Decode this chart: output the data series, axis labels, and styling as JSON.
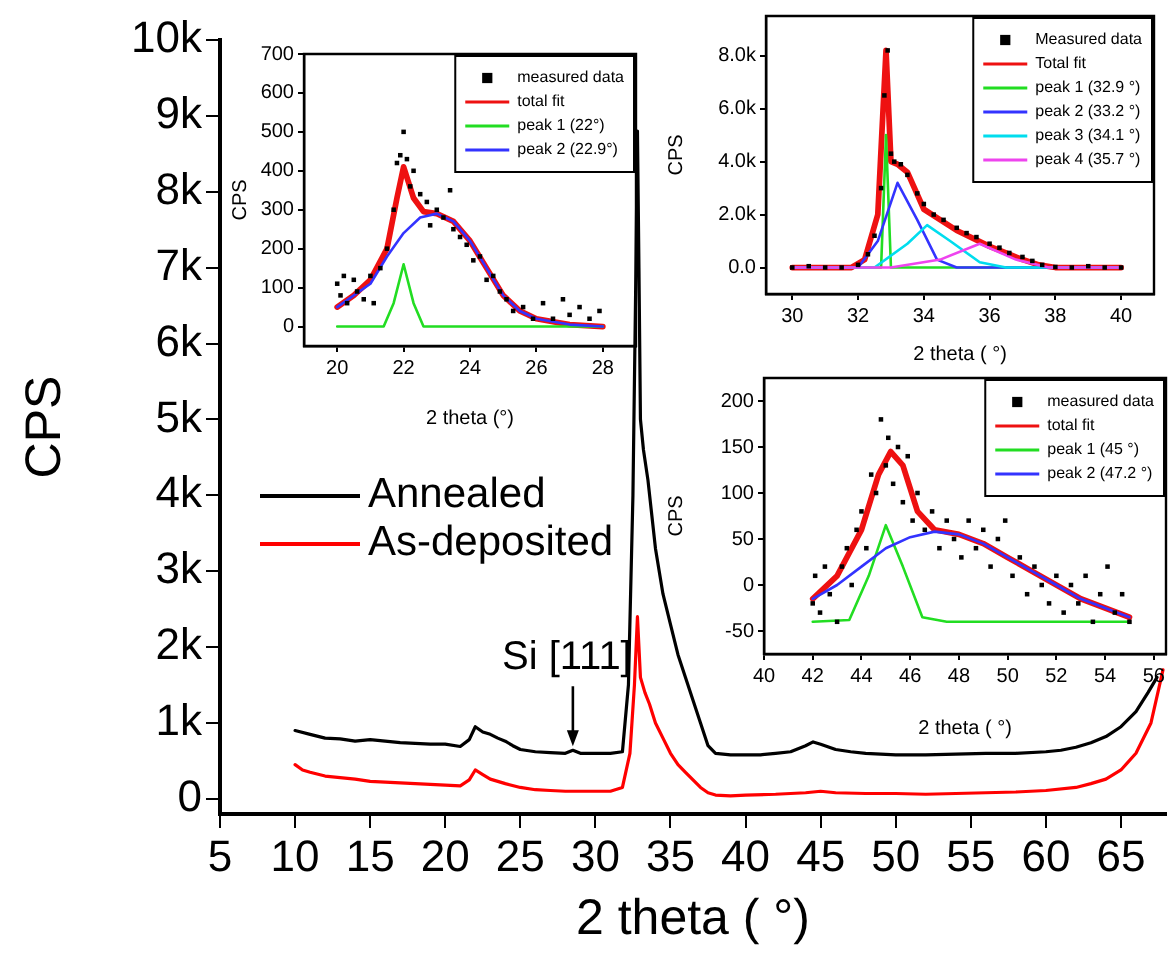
{
  "chart_data": [
    {
      "type": "line",
      "xlabel": "2 theta ( °)",
      "ylabel": "CPS",
      "xlim": [
        5,
        68
      ],
      "xticks": [
        5,
        10,
        15,
        20,
        25,
        30,
        35,
        40,
        45,
        50,
        55,
        60,
        65
      ],
      "ylim": [
        -200,
        10000
      ],
      "yticks": [
        0,
        {
          "value": 1000,
          "label": "1k"
        },
        {
          "value": 2000,
          "label": "2k"
        },
        {
          "value": 3000,
          "label": "3k"
        },
        {
          "value": 4000,
          "label": "4k"
        },
        {
          "value": 5000,
          "label": "5k"
        },
        {
          "value": 6000,
          "label": "6k"
        },
        {
          "value": 7000,
          "label": "7k"
        },
        {
          "value": 8000,
          "label": "8k"
        },
        {
          "value": 9000,
          "label": "9k"
        },
        {
          "value": 10000,
          "label": "10k"
        }
      ],
      "legend": "center left",
      "line_style": "solid",
      "annotations": [
        {
          "text": "Si [111]",
          "x": 28.5,
          "y": 640
        }
      ],
      "series": [
        {
          "name": "Annealed",
          "color": "#000000",
          "x": [
            10,
            11,
            12,
            13,
            14,
            15,
            16,
            17,
            18,
            19,
            20,
            21,
            21.6,
            22,
            22.5,
            23,
            23.5,
            24,
            24.5,
            25,
            26,
            27,
            28,
            28.5,
            29,
            30,
            31,
            31.8,
            32.2,
            32.5,
            32.7,
            32.8,
            32.9,
            33,
            33.2,
            33.5,
            34,
            34.5,
            35,
            35.5,
            36,
            36.5,
            37,
            37.5,
            38,
            39,
            40,
            41,
            42,
            43,
            44,
            44.5,
            45,
            46,
            47,
            48,
            50,
            52,
            54,
            56,
            58,
            60,
            61,
            62,
            63,
            64,
            65,
            66,
            66.8,
            67.4
          ],
          "values": [
            900,
            850,
            800,
            790,
            760,
            780,
            760,
            740,
            730,
            720,
            720,
            690,
            780,
            950,
            880,
            850,
            800,
            760,
            700,
            650,
            620,
            610,
            600,
            640,
            600,
            600,
            600,
            620,
            1500,
            4000,
            7000,
            8800,
            7000,
            5000,
            4600,
            4200,
            3300,
            2700,
            2300,
            1900,
            1600,
            1300,
            1000,
            700,
            600,
            580,
            580,
            580,
            600,
            620,
            700,
            750,
            720,
            650,
            620,
            600,
            580,
            580,
            590,
            600,
            600,
            620,
            640,
            680,
            740,
            820,
            950,
            1150,
            1400,
            1600
          ]
        },
        {
          "name": "As-deposited",
          "color": "#ff0000",
          "x": [
            10,
            10.5,
            11,
            12,
            13,
            14,
            15,
            16,
            17,
            18,
            19,
            20,
            21,
            21.6,
            22,
            22.5,
            23,
            24,
            25,
            26,
            27,
            28,
            29,
            30,
            31,
            31.8,
            32.3,
            32.6,
            32.8,
            33,
            33.3,
            33.6,
            34,
            34.5,
            35,
            35.5,
            36,
            36.5,
            37,
            37.5,
            38,
            39,
            40,
            42,
            44,
            45,
            46,
            48,
            50,
            52,
            54,
            56,
            58,
            60,
            62,
            63,
            64,
            65,
            66,
            67,
            67.8
          ],
          "values": [
            450,
            380,
            350,
            300,
            280,
            260,
            230,
            220,
            210,
            200,
            190,
            180,
            170,
            250,
            380,
            320,
            260,
            200,
            150,
            120,
            110,
            100,
            100,
            100,
            100,
            150,
            600,
            1500,
            2400,
            1600,
            1400,
            1250,
            1000,
            800,
            600,
            450,
            350,
            250,
            150,
            80,
            50,
            40,
            50,
            60,
            80,
            100,
            80,
            70,
            70,
            60,
            70,
            80,
            90,
            110,
            150,
            200,
            260,
            380,
            600,
            1000,
            1700
          ]
        }
      ]
    },
    {
      "type": "line",
      "xlabel": "2 theta (°)",
      "ylabel": "CPS",
      "xlim": [
        19,
        29
      ],
      "xticks": [
        20,
        22,
        24,
        26,
        28
      ],
      "ylim": [
        -50,
        700
      ],
      "yticks": [
        0,
        100,
        200,
        300,
        400,
        500,
        600,
        700
      ],
      "legend": "top right",
      "line_style": "solid",
      "series": [
        {
          "name": "measured data",
          "type": "scatter",
          "marker": "square",
          "color": "#000000",
          "x": [
            20,
            20.1,
            20.2,
            20.3,
            20.5,
            20.6,
            20.8,
            21,
            21.1,
            21.3,
            21.5,
            21.7,
            21.8,
            21.9,
            22,
            22.1,
            22.2,
            22.3,
            22.5,
            22.7,
            22.8,
            23,
            23.2,
            23.4,
            23.5,
            23.7,
            23.9,
            24.1,
            24.3,
            24.5,
            24.7,
            24.9,
            25.1,
            25.3,
            25.6,
            25.9,
            26.2,
            26.5,
            26.8,
            27,
            27.3,
            27.6,
            27.9
          ],
          "values": [
            110,
            80,
            130,
            60,
            120,
            90,
            70,
            130,
            60,
            150,
            200,
            300,
            420,
            440,
            500,
            430,
            360,
            400,
            340,
            320,
            260,
            300,
            280,
            350,
            250,
            230,
            210,
            170,
            180,
            120,
            130,
            90,
            70,
            40,
            50,
            20,
            60,
            20,
            70,
            30,
            50,
            20,
            40
          ]
        },
        {
          "name": "total fit",
          "color": "#ee1111",
          "x": [
            20,
            20.5,
            21,
            21.5,
            21.8,
            22,
            22.3,
            22.6,
            23,
            23.5,
            24,
            24.5,
            25,
            25.5,
            26,
            27,
            28
          ],
          "values": [
            50,
            80,
            120,
            200,
            330,
            410,
            330,
            295,
            290,
            270,
            220,
            150,
            80,
            40,
            20,
            5,
            0
          ]
        },
        {
          "name": "peak 1 (22°)",
          "color": "#22dd22",
          "x": [
            20,
            21.4,
            21.7,
            22,
            22.3,
            22.6,
            28
          ],
          "values": [
            0,
            0,
            60,
            160,
            60,
            0,
            0
          ]
        },
        {
          "name": "peak 2 (22.9°)",
          "color": "#3333ff",
          "x": [
            20,
            21,
            21.5,
            22,
            22.5,
            23,
            23.5,
            24,
            24.5,
            25,
            25.5,
            26,
            27,
            28
          ],
          "values": [
            50,
            110,
            180,
            240,
            280,
            290,
            270,
            220,
            150,
            80,
            40,
            20,
            5,
            0
          ]
        }
      ]
    },
    {
      "type": "line",
      "xlabel": "2 theta ( °)",
      "ylabel": "CPS",
      "xlim": [
        29.2,
        41
      ],
      "xticks": [
        30,
        32,
        34,
        36,
        38,
        40
      ],
      "ylim": [
        -1000,
        9500
      ],
      "yticks": [
        {
          "value": 0,
          "label": "0.0"
        },
        {
          "value": 2000,
          "label": "2.0k"
        },
        {
          "value": 4000,
          "label": "4.0k"
        },
        {
          "value": 6000,
          "label": "6.0k"
        },
        {
          "value": 8000,
          "label": "8.0k"
        }
      ],
      "legend": "top right",
      "line_style": "solid",
      "series": [
        {
          "name": "Measured data",
          "type": "scatter",
          "marker": "square",
          "color": "#000000",
          "x": [
            30,
            30.5,
            31,
            31.5,
            32,
            32.3,
            32.5,
            32.7,
            32.8,
            32.9,
            33,
            33.1,
            33.3,
            33.5,
            33.8,
            34,
            34.3,
            34.6,
            35,
            35.3,
            35.6,
            36,
            36.3,
            36.6,
            37,
            37.3,
            37.6,
            38,
            38.5,
            39,
            39.5,
            40
          ],
          "values": [
            0,
            50,
            0,
            0,
            100,
            500,
            1200,
            3000,
            6500,
            8200,
            4300,
            4000,
            3900,
            3500,
            2800,
            2400,
            2000,
            1800,
            1500,
            1300,
            1150,
            900,
            750,
            550,
            400,
            250,
            100,
            20,
            0,
            50,
            0,
            0
          ]
        },
        {
          "name": "Total fit",
          "color": "#ee1111",
          "x": [
            30,
            31.8,
            32.2,
            32.6,
            32.85,
            33,
            33.2,
            33.5,
            34,
            34.5,
            35,
            35.5,
            36,
            36.5,
            37,
            37.5,
            38,
            40
          ],
          "values": [
            0,
            0,
            300,
            2000,
            8200,
            4000,
            3900,
            3600,
            2200,
            1800,
            1400,
            1100,
            800,
            550,
            300,
            100,
            0,
            0
          ]
        },
        {
          "name": "peak 1 (32.9 °)",
          "color": "#22dd22",
          "x": [
            30,
            32.7,
            32.85,
            33,
            40
          ],
          "values": [
            0,
            0,
            5000,
            0,
            0
          ]
        },
        {
          "name": "peak 2 (33.2 °)",
          "color": "#3333ff",
          "x": [
            30,
            32,
            32.6,
            33.2,
            33.8,
            34.4,
            35,
            40
          ],
          "values": [
            0,
            0,
            1000,
            3200,
            1800,
            300,
            0,
            0
          ]
        },
        {
          "name": "peak 3 (34.1 °)",
          "color": "#00ddee",
          "x": [
            30,
            32.5,
            33.5,
            34.1,
            34.8,
            35.7,
            36.5,
            40
          ],
          "values": [
            0,
            0,
            900,
            1600,
            1000,
            200,
            0,
            0
          ]
        },
        {
          "name": "peak 4 (35.7 °)",
          "color": "#ee44ee",
          "x": [
            30,
            33,
            34.5,
            35.7,
            36.8,
            37.8,
            40
          ],
          "values": [
            0,
            0,
            300,
            900,
            300,
            0,
            0
          ]
        }
      ]
    },
    {
      "type": "line",
      "xlabel": "2 theta ( °)",
      "ylabel": "CPS",
      "xlim": [
        40,
        56.5
      ],
      "xticks": [
        40,
        42,
        44,
        46,
        48,
        50,
        52,
        54,
        56
      ],
      "ylim": [
        -75,
        225
      ],
      "yticks": [
        -50,
        0,
        50,
        100,
        150,
        200
      ],
      "legend": "top right",
      "line_style": "solid",
      "series": [
        {
          "name": "measured data",
          "type": "scatter",
          "marker": "square",
          "color": "#000000",
          "x": [
            42,
            42.1,
            42.3,
            42.5,
            42.7,
            43,
            43.2,
            43.4,
            43.6,
            43.8,
            44,
            44.2,
            44.4,
            44.6,
            44.8,
            45,
            45.1,
            45.3,
            45.5,
            45.7,
            45.9,
            46.1,
            46.3,
            46.6,
            46.9,
            47.2,
            47.5,
            47.8,
            48.1,
            48.4,
            48.7,
            49,
            49.3,
            49.6,
            49.9,
            50.2,
            50.5,
            50.8,
            51.1,
            51.4,
            51.7,
            52,
            52.3,
            52.6,
            52.9,
            53.2,
            53.5,
            53.8,
            54.1,
            54.4,
            54.7,
            55
          ],
          "values": [
            -20,
            10,
            -30,
            20,
            -10,
            -40,
            20,
            40,
            0,
            60,
            80,
            40,
            120,
            100,
            180,
            130,
            160,
            110,
            150,
            90,
            140,
            70,
            100,
            60,
            80,
            40,
            70,
            50,
            30,
            70,
            40,
            60,
            20,
            50,
            70,
            10,
            30,
            -10,
            20,
            0,
            -20,
            10,
            -30,
            0,
            -20,
            10,
            -40,
            -10,
            20,
            -30,
            -10,
            -40
          ]
        },
        {
          "name": "total fit",
          "color": "#ee1111",
          "x": [
            42,
            43,
            44,
            44.7,
            45.2,
            45.7,
            46.3,
            47,
            48,
            49,
            50,
            51,
            52,
            53,
            54,
            55
          ],
          "values": [
            -15,
            10,
            60,
            120,
            145,
            130,
            80,
            60,
            55,
            45,
            30,
            15,
            0,
            -15,
            -25,
            -35
          ]
        },
        {
          "name": "peak 1 (45 °)",
          "color": "#22dd22",
          "x": [
            42,
            43.5,
            44.3,
            45,
            45.7,
            46.5,
            47.5,
            55
          ],
          "values": [
            -40,
            -38,
            10,
            65,
            20,
            -35,
            -40,
            -40
          ]
        },
        {
          "name": "peak 2 (47.2 °)",
          "color": "#3333ff",
          "x": [
            42,
            43,
            44,
            45,
            46,
            47,
            48,
            49,
            50,
            51,
            52,
            53,
            54,
            55
          ],
          "values": [
            -15,
            0,
            20,
            40,
            52,
            58,
            55,
            45,
            30,
            15,
            0,
            -15,
            -25,
            -35
          ]
        }
      ]
    }
  ]
}
